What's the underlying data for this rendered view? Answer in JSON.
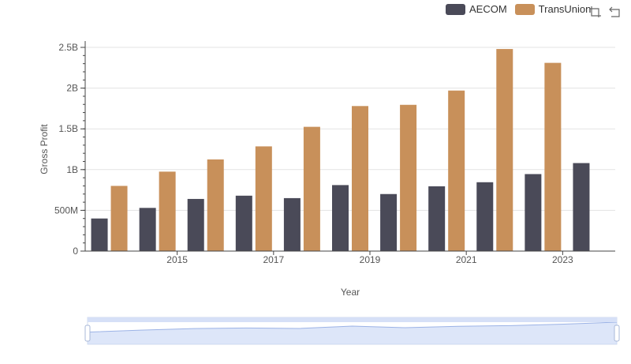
{
  "legend": [
    {
      "name": "AECOM",
      "color": "#4a4a58"
    },
    {
      "name": "TransUnion",
      "color": "#c8905a"
    }
  ],
  "toolbox": [
    "zoom-icon",
    "restore-icon"
  ],
  "chart_data": {
    "type": "bar",
    "xlabel": "Year",
    "ylabel": "Gross Profit",
    "ylim": [
      0,
      2500000000
    ],
    "yticks": [
      {
        "value": 0,
        "label": "0"
      },
      {
        "value": 500000000,
        "label": "500M"
      },
      {
        "value": 1000000000,
        "label": "1B"
      },
      {
        "value": 1500000000,
        "label": "1.5B"
      },
      {
        "value": 2000000000,
        "label": "2B"
      },
      {
        "value": 2500000000,
        "label": "2.5B"
      }
    ],
    "categories": [
      "2014",
      "2015",
      "2016",
      "2017",
      "2018",
      "2019",
      "2020",
      "2021",
      "2022",
      "2023",
      "2024"
    ],
    "xtick_labels_shown": [
      "2015",
      "2017",
      "2019",
      "2021",
      "2023"
    ],
    "series": [
      {
        "name": "AECOM",
        "color": "#4a4a58",
        "values": [
          400000000,
          530000000,
          640000000,
          680000000,
          650000000,
          810000000,
          700000000,
          795000000,
          845000000,
          945000000,
          1080000000
        ]
      },
      {
        "name": "TransUnion",
        "color": "#c8905a",
        "values": [
          800000000,
          975000000,
          1125000000,
          1285000000,
          1525000000,
          1780000000,
          1795000000,
          1970000000,
          2480000000,
          2310000000,
          null
        ]
      }
    ],
    "grid": true,
    "legend_position": "top-right",
    "datazoom": {
      "start": 0,
      "end": 100
    }
  }
}
